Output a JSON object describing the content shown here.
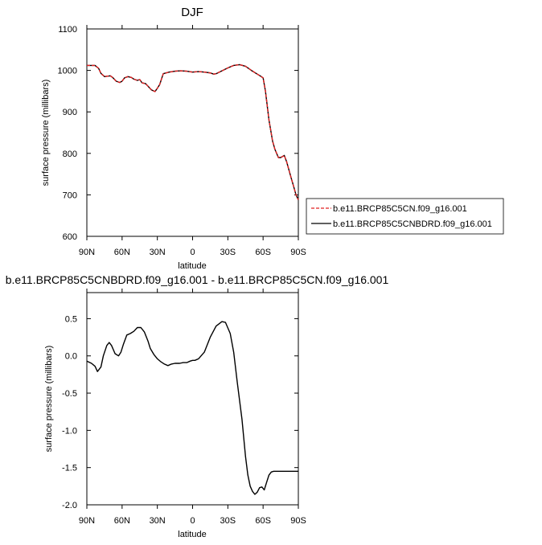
{
  "chart_data": [
    {
      "type": "line",
      "title": "DJF",
      "xlabel": "latitude",
      "ylabel": "surface pressure (millibars)",
      "xlim": [
        90,
        -90
      ],
      "ylim": [
        600,
        1100
      ],
      "xtick_values": [
        90,
        60,
        30,
        0,
        -30,
        -60,
        -90
      ],
      "xtick_labels": [
        "90N",
        "60N",
        "30N",
        "0",
        "30S",
        "60S",
        "90S"
      ],
      "ytick_values": [
        600,
        700,
        800,
        900,
        1000,
        1100
      ],
      "ytick_labels": [
        "600",
        "700",
        "800",
        "900",
        "1000",
        "1100"
      ],
      "grid": false,
      "legend_position": "right",
      "series": [
        {
          "name": "b.e11.BRCP85C5CN.f09_g16.001",
          "color": "#e02020",
          "dash": "dashed",
          "x": [
            90,
            83,
            80,
            78,
            75,
            70,
            68,
            65,
            62,
            60,
            58,
            55,
            52,
            50,
            47,
            45,
            43,
            40,
            38,
            35,
            32,
            30,
            28,
            25,
            20,
            15,
            10,
            5,
            0,
            -5,
            -10,
            -15,
            -18,
            -20,
            -25,
            -30,
            -35,
            -40,
            -45,
            -50,
            -55,
            -58,
            -60,
            -62,
            -65,
            -68,
            -70,
            -73,
            -75,
            -78,
            -80,
            -82,
            -84,
            -86,
            -88,
            -90
          ],
          "y": [
            1012,
            1012,
            1005,
            993,
            985,
            987,
            983,
            974,
            971,
            974,
            982,
            985,
            983,
            979,
            976,
            978,
            970,
            968,
            962,
            953,
            949,
            957,
            966,
            992,
            996,
            998,
            999,
            998,
            996,
            997,
            996,
            994,
            991,
            992,
            999,
            1006,
            1012,
            1014,
            1010,
            1000,
            991,
            986,
            982,
            950,
            880,
            830,
            810,
            790,
            790,
            795,
            780,
            760,
            740,
            720,
            700,
            688
          ]
        },
        {
          "name": "b.e11.BRCP85C5CNBDRD.f09_g16.001",
          "color": "#000000",
          "dash": "solid",
          "x": [
            90,
            83,
            80,
            78,
            75,
            70,
            68,
            65,
            62,
            60,
            58,
            55,
            52,
            50,
            47,
            45,
            43,
            40,
            38,
            35,
            32,
            30,
            28,
            25,
            20,
            15,
            10,
            5,
            0,
            -5,
            -10,
            -15,
            -18,
            -20,
            -25,
            -30,
            -35,
            -40,
            -45,
            -50,
            -55,
            -58,
            -60,
            -62,
            -65,
            -68,
            -70,
            -73,
            -75,
            -78,
            -80,
            -82,
            -84,
            -86,
            -88,
            -90
          ],
          "y": [
            1012,
            1012,
            1005,
            993,
            985,
            987,
            983,
            974,
            971,
            974,
            982,
            985,
            983,
            979,
            976,
            978,
            970,
            968,
            962,
            953,
            949,
            957,
            966,
            992,
            996,
            998,
            999,
            998,
            996,
            997,
            996,
            994,
            991,
            992,
            999,
            1006,
            1012,
            1014,
            1010,
            1000,
            991,
            986,
            982,
            950,
            880,
            830,
            810,
            790,
            790,
            795,
            780,
            760,
            740,
            720,
            700,
            688
          ]
        }
      ]
    },
    {
      "type": "line",
      "title": "b.e11.BRCP85C5CNBDRD.f09_g16.001 - b.e11.BRCP85C5CN.f09_g16.001",
      "xlabel": "latitude",
      "ylabel": "surface pressure (millibars)",
      "xlim": [
        90,
        -90
      ],
      "ylim": [
        -2.0,
        0.85
      ],
      "xtick_values": [
        90,
        60,
        30,
        0,
        -30,
        -60,
        -90
      ],
      "xtick_labels": [
        "90N",
        "60N",
        "30N",
        "0",
        "30S",
        "60S",
        "90S"
      ],
      "ytick_values": [
        0.5,
        0.0,
        -0.5,
        -1.0,
        -1.5,
        -2.0
      ],
      "ytick_labels": [
        "0.5",
        "0.0",
        "-0.5",
        "-1.0",
        "-1.5",
        "-2.0"
      ],
      "grid": false,
      "series": [
        {
          "color": "#000000",
          "x": [
            90,
            86,
            83,
            81,
            78,
            76,
            73,
            71,
            69,
            66,
            63,
            61,
            59,
            56,
            53,
            50,
            47,
            44,
            41,
            38,
            36,
            33,
            30,
            27,
            24,
            21,
            18,
            15,
            11,
            8,
            5,
            2,
            0,
            -2,
            -5,
            -10,
            -15,
            -20,
            -25,
            -28,
            -32,
            -35,
            -38,
            -42,
            -45,
            -47,
            -49,
            -51,
            -53,
            -55,
            -57,
            -59,
            -61,
            -63,
            -65,
            -67,
            -69,
            -71,
            -73,
            -76,
            -78,
            -80,
            -82,
            -84,
            -86,
            -88,
            -90
          ],
          "y": [
            -0.07,
            -0.1,
            -0.14,
            -0.21,
            -0.15,
            0.0,
            0.14,
            0.18,
            0.14,
            0.03,
            0.0,
            0.05,
            0.15,
            0.28,
            0.3,
            0.33,
            0.38,
            0.38,
            0.32,
            0.2,
            0.1,
            0.02,
            -0.04,
            -0.08,
            -0.11,
            -0.13,
            -0.11,
            -0.1,
            -0.1,
            -0.09,
            -0.09,
            -0.07,
            -0.06,
            -0.06,
            -0.04,
            0.05,
            0.25,
            0.4,
            0.46,
            0.45,
            0.3,
            0.05,
            -0.35,
            -0.85,
            -1.35,
            -1.6,
            -1.75,
            -1.82,
            -1.86,
            -1.83,
            -1.77,
            -1.76,
            -1.8,
            -1.7,
            -1.6,
            -1.56,
            -1.55,
            -1.55,
            -1.55,
            -1.55,
            -1.55,
            -1.55,
            -1.55,
            -1.55,
            -1.55,
            -1.55,
            -1.55
          ]
        }
      ]
    }
  ]
}
